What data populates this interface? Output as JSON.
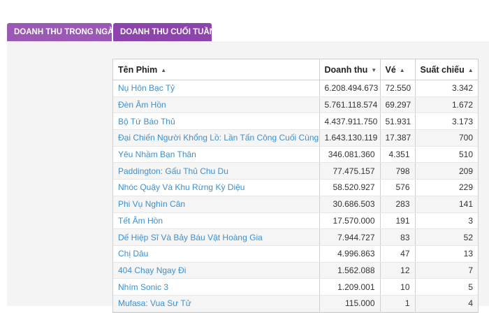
{
  "tabs": [
    {
      "label": "DOANH THU TRONG NGÀY"
    },
    {
      "label": "DOANH THU CUỐI TUẦN"
    }
  ],
  "table": {
    "headers": {
      "name": "Tên Phim",
      "revenue": "Doanh thu",
      "tickets": "Vé",
      "showings": "Suất chiếu"
    },
    "sort_icons": {
      "name": "▲",
      "revenue": "▼",
      "tickets": "▲",
      "showings": "▲"
    },
    "rows": [
      {
        "name": "Nụ Hôn Bạc Tỷ",
        "revenue": "6.208.494.673",
        "tickets": "72.550",
        "showings": "3.342"
      },
      {
        "name": "Đèn Âm Hồn",
        "revenue": "5.761.118.574",
        "tickets": "69.297",
        "showings": "1.672"
      },
      {
        "name": "Bộ Tứ Báo Thủ",
        "revenue": "4.437.911.750",
        "tickets": "51.931",
        "showings": "3.173"
      },
      {
        "name": "Đại Chiến Người Khổng Lồ: Lần Tấn Công Cuối Cùng",
        "revenue": "1.643.130.119",
        "tickets": "17.387",
        "showings": "700"
      },
      {
        "name": "Yêu Nhầm Bạn Thân",
        "revenue": "346.081.360",
        "tickets": "4.351",
        "showings": "510"
      },
      {
        "name": "Paddington: Gấu Thủ Chu Du",
        "revenue": "77.475.157",
        "tickets": "798",
        "showings": "209"
      },
      {
        "name": "Nhóc Quậy Và Khu Rừng Kỳ Diệu",
        "revenue": "58.520.927",
        "tickets": "576",
        "showings": "229"
      },
      {
        "name": "Phi Vụ Nghìn Cân",
        "revenue": "30.686.503",
        "tickets": "283",
        "showings": "141"
      },
      {
        "name": "Tết Âm Hồn",
        "revenue": "17.570.000",
        "tickets": "191",
        "showings": "3"
      },
      {
        "name": "Dế Hiệp Sĩ Và Bảy Báu Vật Hoàng Gia",
        "revenue": "7.944.727",
        "tickets": "83",
        "showings": "52"
      },
      {
        "name": "Chị Dâu",
        "revenue": "4.996.863",
        "tickets": "47",
        "showings": "13"
      },
      {
        "name": "404 Chạy Ngay Đi",
        "revenue": "1.562.088",
        "tickets": "12",
        "showings": "7"
      },
      {
        "name": "Nhím Sonic 3",
        "revenue": "1.209.001",
        "tickets": "10",
        "showings": "5"
      },
      {
        "name": "Mufasa: Vua Sư Tử",
        "revenue": "115.000",
        "tickets": "1",
        "showings": "4"
      }
    ]
  },
  "colors": {
    "tab_background": "#9b58b5",
    "tab_active_background": "#8e44ad",
    "link": "#3d8fd0",
    "panel_background": "#f4f4f4"
  }
}
